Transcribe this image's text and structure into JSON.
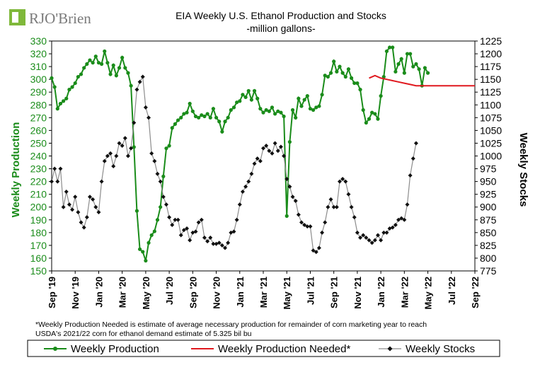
{
  "logo": {
    "text": "RJO'Brien"
  },
  "colors": {
    "production": "#1a8c1a",
    "needed": "#e0191f",
    "stocks": "#111111",
    "stocks_line": "#8c8c8c",
    "axis_left": "#1a8c1a",
    "logo_green": "#7fb83a",
    "logo_text": "#7a7a7a"
  },
  "chart_data": {
    "type": "line",
    "title": "EIA Weekly U.S. Ethanol Production and Stocks",
    "subtitle": "-million  gallons-",
    "ylabel_left": "Weekly Production",
    "ylabel_right": "Weekly Stocks",
    "ylim_left": [
      150,
      330
    ],
    "ylim_right": [
      775,
      1225
    ],
    "yticks_left": [
      "150",
      "160",
      "170",
      "180",
      "190",
      "200",
      "210",
      "220",
      "230",
      "240",
      "250",
      "260",
      "270",
      "280",
      "290",
      "300",
      "310",
      "320",
      "330"
    ],
    "yticks_right": [
      "775",
      "800",
      "825",
      "850",
      "875",
      "900",
      "925",
      "950",
      "975",
      "1000",
      "1025",
      "1050",
      "1075",
      "1100",
      "1125",
      "1150",
      "1175",
      "1200",
      "1225"
    ],
    "xlim": [
      0,
      36
    ],
    "xticks": [
      {
        "pos": 0,
        "label": "Sep '19"
      },
      {
        "pos": 2,
        "label": "Nov '19"
      },
      {
        "pos": 4,
        "label": "Jan '20"
      },
      {
        "pos": 6,
        "label": "Mar '20"
      },
      {
        "pos": 8,
        "label": "May '20"
      },
      {
        "pos": 10,
        "label": "Jul '20"
      },
      {
        "pos": 12,
        "label": "Sep '20"
      },
      {
        "pos": 14,
        "label": "Nov '20"
      },
      {
        "pos": 16,
        "label": "Jan '21"
      },
      {
        "pos": 18,
        "label": "Mar '21"
      },
      {
        "pos": 20,
        "label": "May '21"
      },
      {
        "pos": 22,
        "label": "Jul '21"
      },
      {
        "pos": 24,
        "label": "Sep '21"
      },
      {
        "pos": 26,
        "label": "Nov '21"
      },
      {
        "pos": 28,
        "label": "Jan '22"
      },
      {
        "pos": 30,
        "label": "Mar '22"
      },
      {
        "pos": 32,
        "label": "May '22"
      },
      {
        "pos": 34,
        "label": "Jul '22"
      },
      {
        "pos": 36,
        "label": "Sep '22"
      }
    ],
    "footnote": "*Weekly Production Needed is estimate of average necessary production for remainder of corn marketing year to reach USDA's  2021/22 corn for ethanol demand estimate of 5.325 bil bu",
    "legend_placement": "bottom",
    "series": [
      {
        "name": "Weekly Production",
        "axis": "left",
        "marker": "circle",
        "points": [
          [
            0.0,
            301
          ],
          [
            0.25,
            294
          ],
          [
            0.5,
            277
          ],
          [
            0.75,
            281
          ],
          [
            1.0,
            283
          ],
          [
            1.25,
            285
          ],
          [
            1.5,
            292
          ],
          [
            1.75,
            294
          ],
          [
            2.0,
            297
          ],
          [
            2.25,
            302
          ],
          [
            2.5,
            304
          ],
          [
            2.75,
            309
          ],
          [
            3.0,
            312
          ],
          [
            3.25,
            315
          ],
          [
            3.5,
            313
          ],
          [
            3.75,
            318
          ],
          [
            4.0,
            313
          ],
          [
            4.25,
            312
          ],
          [
            4.5,
            322
          ],
          [
            4.75,
            313
          ],
          [
            5.0,
            304
          ],
          [
            5.25,
            311
          ],
          [
            5.5,
            303
          ],
          [
            5.75,
            309
          ],
          [
            6.0,
            317
          ],
          [
            6.25,
            309
          ],
          [
            6.5,
            305
          ],
          [
            6.75,
            295
          ],
          [
            7.0,
            247
          ],
          [
            7.25,
            197
          ],
          [
            7.5,
            167
          ],
          [
            7.75,
            165
          ],
          [
            8.0,
            158
          ],
          [
            8.25,
            172
          ],
          [
            8.5,
            178
          ],
          [
            8.75,
            181
          ],
          [
            9.0,
            190
          ],
          [
            9.25,
            200
          ],
          [
            9.5,
            224
          ],
          [
            9.75,
            246
          ],
          [
            10.0,
            248
          ],
          [
            10.25,
            262
          ],
          [
            10.5,
            265
          ],
          [
            10.75,
            268
          ],
          [
            11.0,
            270
          ],
          [
            11.25,
            273
          ],
          [
            11.5,
            274
          ],
          [
            11.75,
            281
          ],
          [
            12.0,
            275
          ],
          [
            12.25,
            271
          ],
          [
            12.5,
            270
          ],
          [
            12.75,
            272
          ],
          [
            13.0,
            271
          ],
          [
            13.25,
            273
          ],
          [
            13.5,
            270
          ],
          [
            13.75,
            277
          ],
          [
            14.0,
            270
          ],
          [
            14.25,
            267
          ],
          [
            14.5,
            259
          ],
          [
            14.75,
            267
          ],
          [
            15.0,
            270
          ],
          [
            15.25,
            276
          ],
          [
            15.5,
            278
          ],
          [
            15.75,
            282
          ],
          [
            16.0,
            283
          ],
          [
            16.25,
            288
          ],
          [
            16.5,
            286
          ],
          [
            16.75,
            291
          ],
          [
            17.0,
            284
          ],
          [
            17.25,
            291
          ],
          [
            17.5,
            285
          ],
          [
            17.75,
            277
          ],
          [
            18.0,
            274
          ],
          [
            18.25,
            276
          ],
          [
            18.5,
            275
          ],
          [
            18.75,
            278
          ],
          [
            19.0,
            273
          ],
          [
            19.25,
            275
          ],
          [
            19.5,
            274
          ],
          [
            19.75,
            271
          ],
          [
            20.0,
            193
          ],
          [
            20.25,
            251
          ],
          [
            20.5,
            276
          ],
          [
            20.75,
            270
          ],
          [
            21.0,
            285
          ],
          [
            21.25,
            279
          ],
          [
            21.5,
            284
          ],
          [
            21.75,
            287
          ],
          [
            22.0,
            277
          ],
          [
            22.25,
            276
          ],
          [
            22.5,
            278
          ],
          [
            22.75,
            279
          ],
          [
            23.0,
            288
          ],
          [
            23.25,
            303
          ],
          [
            23.5,
            302
          ],
          [
            23.75,
            305
          ],
          [
            24.0,
            314
          ],
          [
            24.25,
            306
          ],
          [
            24.5,
            310
          ],
          [
            24.75,
            305
          ],
          [
            25.0,
            302
          ],
          [
            25.25,
            308
          ],
          [
            25.5,
            301
          ],
          [
            25.75,
            297
          ],
          [
            26.0,
            297
          ],
          [
            26.25,
            292
          ],
          [
            26.5,
            276
          ],
          [
            26.75,
            266
          ],
          [
            27.0,
            269
          ],
          [
            27.25,
            274
          ],
          [
            27.5,
            273
          ],
          [
            27.75,
            269
          ],
          [
            28.0,
            287
          ],
          [
            28.25,
            302
          ],
          [
            28.5,
            322
          ],
          [
            28.75,
            325
          ],
          [
            29.0,
            325
          ],
          [
            29.25,
            306
          ],
          [
            29.5,
            312
          ],
          [
            29.75,
            316
          ],
          [
            30.0,
            305
          ],
          [
            30.25,
            320
          ],
          [
            30.5,
            320
          ],
          [
            30.75,
            310
          ],
          [
            31.0,
            312
          ],
          [
            31.25,
            308
          ],
          [
            31.5,
            295
          ],
          [
            31.75,
            309
          ],
          [
            32.0,
            305
          ]
        ]
      },
      {
        "name": "Weekly Production Needed*",
        "axis": "left",
        "marker": "none",
        "points": [
          [
            27.0,
            301
          ],
          [
            27.5,
            303
          ],
          [
            28.0,
            301
          ],
          [
            28.5,
            300
          ],
          [
            29.0,
            299
          ],
          [
            29.5,
            298
          ],
          [
            30.0,
            297
          ],
          [
            30.5,
            296
          ],
          [
            31.0,
            295
          ],
          [
            31.5,
            295
          ],
          [
            32.0,
            295
          ],
          [
            33.0,
            295
          ],
          [
            34.0,
            295
          ],
          [
            35.0,
            295
          ],
          [
            36.0,
            295
          ]
        ]
      },
      {
        "name": "Weekly Stocks",
        "axis": "right",
        "marker": "diamond",
        "points": [
          [
            0.0,
            950
          ],
          [
            0.25,
            975
          ],
          [
            0.5,
            950
          ],
          [
            0.75,
            975
          ],
          [
            1.0,
            900
          ],
          [
            1.25,
            930
          ],
          [
            1.5,
            905
          ],
          [
            1.75,
            895
          ],
          [
            2.0,
            920
          ],
          [
            2.25,
            890
          ],
          [
            2.5,
            870
          ],
          [
            2.75,
            860
          ],
          [
            3.0,
            880
          ],
          [
            3.25,
            920
          ],
          [
            3.5,
            915
          ],
          [
            3.75,
            900
          ],
          [
            4.0,
            890
          ],
          [
            4.25,
            950
          ],
          [
            4.5,
            990
          ],
          [
            4.75,
            1000
          ],
          [
            5.0,
            1005
          ],
          [
            5.25,
            980
          ],
          [
            5.5,
            1000
          ],
          [
            5.75,
            1025
          ],
          [
            6.0,
            1020
          ],
          [
            6.25,
            1035
          ],
          [
            6.5,
            1000
          ],
          [
            6.75,
            1015
          ],
          [
            7.0,
            1065
          ],
          [
            7.25,
            1130
          ],
          [
            7.5,
            1145
          ],
          [
            7.75,
            1155
          ],
          [
            8.0,
            1095
          ],
          [
            8.25,
            1075
          ],
          [
            8.5,
            1005
          ],
          [
            8.75,
            990
          ],
          [
            9.0,
            965
          ],
          [
            9.25,
            950
          ],
          [
            9.5,
            920
          ],
          [
            9.75,
            905
          ],
          [
            10.0,
            880
          ],
          [
            10.25,
            865
          ],
          [
            10.5,
            875
          ],
          [
            10.75,
            875
          ],
          [
            11.0,
            845
          ],
          [
            11.25,
            855
          ],
          [
            11.5,
            858
          ],
          [
            11.75,
            835
          ],
          [
            12.0,
            850
          ],
          [
            12.25,
            852
          ],
          [
            12.5,
            870
          ],
          [
            12.75,
            875
          ],
          [
            13.0,
            840
          ],
          [
            13.25,
            833
          ],
          [
            13.5,
            840
          ],
          [
            13.75,
            828
          ],
          [
            14.0,
            828
          ],
          [
            14.25,
            830
          ],
          [
            14.5,
            825
          ],
          [
            14.75,
            820
          ],
          [
            15.0,
            830
          ],
          [
            15.25,
            850
          ],
          [
            15.5,
            852
          ],
          [
            15.75,
            875
          ],
          [
            16.0,
            905
          ],
          [
            16.25,
            930
          ],
          [
            16.5,
            940
          ],
          [
            16.75,
            950
          ],
          [
            17.0,
            965
          ],
          [
            17.25,
            985
          ],
          [
            17.5,
            995
          ],
          [
            17.75,
            990
          ],
          [
            18.0,
            1015
          ],
          [
            18.25,
            1020
          ],
          [
            18.5,
            1010
          ],
          [
            18.75,
            1005
          ],
          [
            19.0,
            1025
          ],
          [
            19.25,
            1010
          ],
          [
            19.5,
            1018
          ],
          [
            19.75,
            1000
          ],
          [
            20.0,
            955
          ],
          [
            20.25,
            940
          ],
          [
            20.5,
            920
          ],
          [
            20.75,
            912
          ],
          [
            21.0,
            885
          ],
          [
            21.25,
            870
          ],
          [
            21.5,
            865
          ],
          [
            21.75,
            862
          ],
          [
            22.0,
            862
          ],
          [
            22.25,
            815
          ],
          [
            22.5,
            812
          ],
          [
            22.75,
            820
          ],
          [
            23.0,
            850
          ],
          [
            23.25,
            870
          ],
          [
            23.5,
            900
          ],
          [
            23.75,
            915
          ],
          [
            24.0,
            900
          ],
          [
            24.25,
            900
          ],
          [
            24.5,
            950
          ],
          [
            24.75,
            955
          ],
          [
            25.0,
            950
          ],
          [
            25.25,
            925
          ],
          [
            25.5,
            900
          ],
          [
            25.75,
            880
          ],
          [
            26.0,
            850
          ],
          [
            26.25,
            840
          ],
          [
            26.5,
            845
          ],
          [
            26.75,
            840
          ],
          [
            27.0,
            835
          ],
          [
            27.25,
            830
          ],
          [
            27.5,
            835
          ],
          [
            27.75,
            845
          ],
          [
            28.0,
            835
          ],
          [
            28.25,
            850
          ],
          [
            28.5,
            850
          ],
          [
            28.75,
            858
          ],
          [
            29.0,
            860
          ],
          [
            29.25,
            865
          ],
          [
            29.5,
            875
          ],
          [
            29.75,
            878
          ],
          [
            30.0,
            875
          ],
          [
            30.25,
            905
          ],
          [
            30.5,
            962
          ],
          [
            30.75,
            995
          ],
          [
            31.0,
            1025
          ]
        ]
      }
    ]
  }
}
